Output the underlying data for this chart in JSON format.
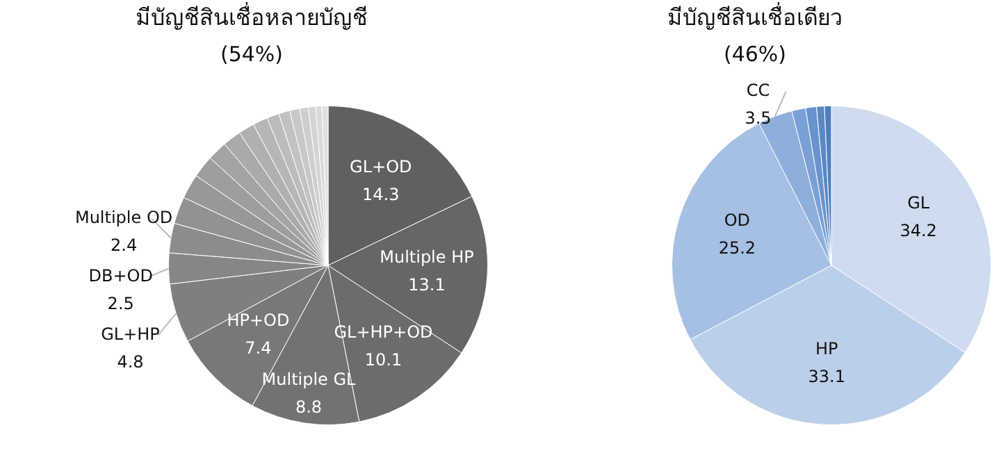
{
  "chart_data": [
    {
      "type": "pie",
      "title": "มีบัญชีสินเชื่อหลายบัญชี",
      "subtitle": "(54%)",
      "categories": [
        "GL+OD",
        "Multiple HP",
        "GL+HP+OD",
        "Multiple GL",
        "HP+OD",
        "GL+HP",
        "DB+OD",
        "Multiple OD",
        null,
        null,
        null,
        null,
        null,
        null,
        null,
        null,
        null,
        null,
        null,
        null,
        null,
        null
      ],
      "values": [
        14.3,
        13.1,
        10.1,
        8.8,
        7.4,
        4.8,
        2.5,
        2.4,
        2.2,
        2.0,
        1.8,
        1.6,
        1.5,
        1.3,
        1.2,
        1.0,
        0.9,
        0.8,
        0.7,
        0.6,
        0.5,
        0.5
      ],
      "value_labels": [
        "14.3",
        "13.1",
        "10.1",
        "8.8",
        "7.4",
        "4.8",
        "2.5",
        "2.4",
        null,
        null,
        null,
        null,
        null,
        null,
        null,
        null,
        null,
        null,
        null,
        null,
        null,
        null
      ],
      "colors": [
        "#606060",
        "#666666",
        "#6c6c6c",
        "#727272",
        "#787878",
        "#7f7f7f",
        "#868686",
        "#8c8c8c",
        "#929292",
        "#989898",
        "#9e9e9e",
        "#a4a4a4",
        "#aaaaaa",
        "#b0b0b0",
        "#b6b6b6",
        "#bcbcbc",
        "#c2c2c2",
        "#c8c8c8",
        "#cecece",
        "#d4d4d4",
        "#dadada",
        "#e0e0e0"
      ]
    },
    {
      "type": "pie",
      "title": "มีบัญชีสินเชื่อเดียว",
      "subtitle": "(46%)",
      "categories": [
        "GL",
        "HP",
        "OD",
        "CC",
        null,
        null,
        null,
        null
      ],
      "values": [
        34.2,
        33.1,
        25.2,
        3.5,
        1.4,
        1.1,
        0.8,
        0.7
      ],
      "value_labels": [
        "34.2",
        "33.1",
        "25.2",
        "3.5",
        null,
        null,
        null,
        null
      ],
      "colors": [
        "#cfdbef",
        "#bccfea",
        "#a6bfe4",
        "#8eafdc",
        "#7aa1d6",
        "#6893cd",
        "#5a88c5",
        "#4f7fbd"
      ]
    }
  ]
}
